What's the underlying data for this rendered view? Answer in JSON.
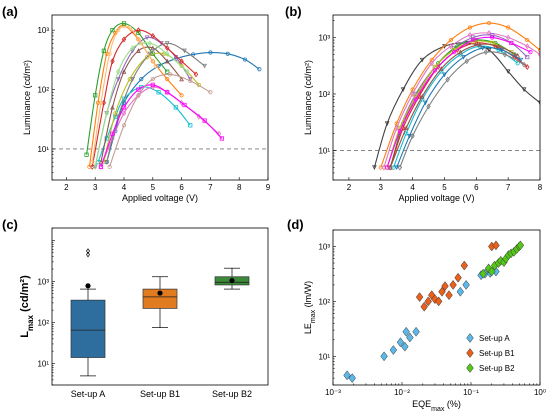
{
  "chart_data": [
    {
      "panel": "(a)",
      "type": "line",
      "xlabel": "Applied voltage (V)",
      "ylabel": "Luminance (cd/m²)",
      "xlim": [
        1.5,
        9.0
      ],
      "ylim": [
        3,
        1800
      ],
      "yscale": "log",
      "xticks": [
        2,
        3,
        4,
        5,
        6,
        7,
        8,
        9
      ],
      "yticks": [
        {
          "v": 10,
          "label": "10¹"
        },
        {
          "v": 100,
          "label": "10²"
        },
        {
          "v": 1000,
          "label": "10³"
        }
      ],
      "reference_line": 10,
      "series": [
        {
          "color": "#1f77b4",
          "marker": "o",
          "x": [
            3.4,
            3.7,
            4.0,
            4.6,
            5.2,
            5.8,
            6.4,
            7.0,
            7.6,
            8.2,
            8.7
          ],
          "y": [
            6,
            20,
            60,
            150,
            250,
            330,
            390,
            420,
            400,
            320,
            220
          ]
        },
        {
          "color": "#17becf",
          "marker": "s",
          "x": [
            3.1,
            3.4,
            3.7,
            4.0,
            4.6,
            5.2,
            5.8,
            6.3
          ],
          "y": [
            6,
            15,
            35,
            70,
            110,
            90,
            50,
            25
          ]
        },
        {
          "color": "#9467bd",
          "marker": "v",
          "x": [
            3.0,
            3.4,
            3.8,
            4.3,
            4.8,
            5.3,
            5.8,
            6.3
          ],
          "y": [
            5,
            40,
            150,
            450,
            750,
            600,
            350,
            150
          ]
        },
        {
          "color": "#e377c2",
          "marker": "d",
          "x": [
            3.2,
            3.6,
            4.0,
            4.5,
            5.0,
            5.5,
            6.0,
            6.6,
            7.3
          ],
          "y": [
            5,
            15,
            40,
            80,
            110,
            90,
            60,
            35,
            18
          ]
        },
        {
          "color": "#ff7f0e",
          "marker": "o",
          "x": [
            2.8,
            3.1,
            3.4,
            3.7,
            4.0,
            4.5,
            5.0,
            5.5,
            6.0
          ],
          "y": [
            5,
            60,
            400,
            900,
            1200,
            700,
            300,
            150,
            80
          ]
        },
        {
          "color": "#2ca02c",
          "marker": "s",
          "x": [
            2.7,
            3.0,
            3.3,
            3.6,
            4.0,
            4.5,
            5.0,
            5.5
          ],
          "y": [
            8,
            80,
            450,
            1000,
            1300,
            900,
            400,
            200
          ]
        },
        {
          "color": "#d62728",
          "marker": "d",
          "x": [
            2.9,
            3.3,
            3.6,
            4.0,
            4.5,
            5.0,
            5.5,
            6.0,
            6.5
          ],
          "y": [
            5,
            60,
            300,
            700,
            1000,
            800,
            500,
            300,
            180
          ]
        },
        {
          "color": "#8c564b",
          "marker": "^",
          "x": [
            3.2,
            3.6,
            4.0,
            4.5,
            5.0,
            5.5,
            6.0
          ],
          "y": [
            6,
            50,
            200,
            450,
            500,
            300,
            150
          ]
        },
        {
          "color": "#bcbd22",
          "marker": "o",
          "x": [
            3.3,
            3.7,
            4.2,
            4.8,
            5.4,
            6.0,
            6.6
          ],
          "y": [
            6,
            40,
            150,
            350,
            400,
            250,
            120
          ]
        },
        {
          "color": "#7f7f7f",
          "marker": "v",
          "x": [
            3.4,
            3.8,
            4.3,
            4.9,
            5.5,
            6.1,
            6.8
          ],
          "y": [
            6,
            35,
            150,
            400,
            600,
            450,
            250
          ]
        },
        {
          "color": "#ff00ff",
          "marker": "s",
          "x": [
            3.2,
            3.6,
            4.0,
            4.5,
            5.0,
            5.5,
            6.1,
            6.8,
            7.4
          ],
          "y": [
            5,
            18,
            50,
            100,
            120,
            90,
            55,
            30,
            15
          ]
        },
        {
          "color": "#ffbb78",
          "marker": "o",
          "x": [
            2.9,
            3.2,
            3.5,
            3.8,
            4.2,
            4.6,
            5.1
          ],
          "y": [
            6,
            60,
            400,
            1000,
            1100,
            600,
            250
          ]
        },
        {
          "color": "#98df8a",
          "marker": "d",
          "x": [
            3.0,
            3.4,
            3.8,
            4.3,
            4.9,
            5.5,
            6.2
          ],
          "y": [
            5,
            40,
            200,
            500,
            600,
            400,
            200
          ]
        },
        {
          "color": "#c49c94",
          "marker": "o",
          "x": [
            3.5,
            4.0,
            4.5,
            5.0,
            5.6,
            6.3,
            7.0
          ],
          "y": [
            5,
            25,
            80,
            150,
            180,
            140,
            90
          ]
        }
      ]
    },
    {
      "panel": "(b)",
      "type": "line",
      "xlabel": "Applied voltage (V)",
      "ylabel": "Luminance (cd/m²)",
      "xlim": [
        1.5,
        8.0
      ],
      "ylim": [
        3,
        2500
      ],
      "yscale": "log",
      "xticks": [
        2,
        3,
        4,
        5,
        6,
        7,
        8
      ],
      "yticks": [
        {
          "v": 10,
          "label": "10¹"
        },
        {
          "v": 100,
          "label": "10²"
        },
        {
          "v": 1000,
          "label": "10³"
        }
      ],
      "reference_line": 10,
      "series": [
        {
          "color": "#404040",
          "marker": "v",
          "x": [
            2.8,
            3.2,
            3.7,
            4.3,
            5.0,
            5.7,
            6.4,
            7.0,
            7.5,
            8.0
          ],
          "y": [
            5,
            30,
            120,
            400,
            700,
            800,
            600,
            250,
            120,
            70
          ]
        },
        {
          "color": "#ff7f0e",
          "marker": "o",
          "x": [
            3.0,
            3.5,
            4.0,
            4.6,
            5.2,
            5.8,
            6.4,
            7.0,
            7.6,
            8.0
          ],
          "y": [
            5,
            30,
            120,
            400,
            900,
            1500,
            1800,
            1500,
            900,
            600
          ]
        },
        {
          "color": "#e377c2",
          "marker": "d",
          "x": [
            3.1,
            3.5,
            4.0,
            4.6,
            5.2,
            5.8,
            6.4,
            7.0,
            7.6,
            8.0
          ],
          "y": [
            5,
            25,
            100,
            350,
            700,
            1100,
            1200,
            1000,
            700,
            500
          ]
        },
        {
          "color": "#9467bd",
          "marker": "s",
          "x": [
            3.2,
            3.6,
            4.1,
            4.7,
            5.3,
            5.9,
            6.5,
            7.1,
            7.6
          ],
          "y": [
            5,
            25,
            100,
            300,
            650,
            1000,
            1100,
            800,
            450
          ]
        },
        {
          "color": "#2ca02c",
          "marker": "o",
          "x": [
            3.3,
            3.7,
            4.2,
            4.8,
            5.4,
            6.0,
            6.6,
            7.2
          ],
          "y": [
            5,
            30,
            110,
            350,
            700,
            900,
            800,
            500
          ]
        },
        {
          "color": "#d62728",
          "marker": "d",
          "x": [
            3.3,
            3.7,
            4.2,
            4.8,
            5.4,
            6.0,
            6.6,
            7.2,
            7.6
          ],
          "y": [
            5,
            25,
            90,
            300,
            600,
            800,
            700,
            450,
            300
          ]
        },
        {
          "color": "#17becf",
          "marker": "o",
          "x": [
            3.4,
            3.8,
            4.3,
            4.9,
            5.5,
            6.1,
            6.7,
            7.3
          ],
          "y": [
            5,
            20,
            80,
            250,
            500,
            700,
            600,
            350
          ]
        },
        {
          "color": "#bcbd22",
          "marker": "s",
          "x": [
            3.2,
            3.6,
            4.1,
            4.7,
            5.3,
            5.9,
            6.5,
            7.1
          ],
          "y": [
            5,
            25,
            90,
            300,
            600,
            850,
            800,
            550
          ]
        },
        {
          "color": "#1f77b4",
          "marker": "v",
          "x": [
            3.5,
            3.9,
            4.4,
            5.0,
            5.6,
            6.2,
            6.8,
            7.4
          ],
          "y": [
            5,
            18,
            70,
            220,
            450,
            650,
            600,
            400
          ]
        },
        {
          "color": "#8c564b",
          "marker": "^",
          "x": [
            3.3,
            3.8,
            4.3,
            4.9,
            5.5,
            6.1,
            6.7,
            7.3
          ],
          "y": [
            5,
            25,
            90,
            280,
            550,
            750,
            700,
            480
          ]
        },
        {
          "color": "#ff00ff",
          "marker": "o",
          "x": [
            3.2,
            3.6,
            4.1,
            4.7,
            5.3,
            5.9,
            6.5,
            7.1,
            7.7
          ],
          "y": [
            5,
            22,
            80,
            260,
            550,
            900,
            1000,
            800,
            550
          ]
        },
        {
          "color": "#7f7f7f",
          "marker": "d",
          "x": [
            3.6,
            4.0,
            4.5,
            5.1,
            5.7,
            6.3,
            6.9,
            7.5
          ],
          "y": [
            5,
            18,
            60,
            180,
            380,
            550,
            500,
            330
          ]
        }
      ]
    },
    {
      "panel": "(c)",
      "type": "box",
      "ylabel": "L",
      "ylabel_sub": "max",
      "ylabel_unit": " (cd/m²)",
      "yscale": "log",
      "ylim": [
        3,
        20000
      ],
      "yticks": [
        {
          "v": 10,
          "label": "10¹"
        },
        {
          "v": 100,
          "label": "10²"
        },
        {
          "v": 1000,
          "label": "10³"
        }
      ],
      "categories": [
        "Set-up A",
        "Set-up B1",
        "Set-up B2"
      ],
      "boxes": [
        {
          "color": "#2e6e9e",
          "whisker_low": 5,
          "q1": 14,
          "median": 65,
          "q3": 350,
          "whisker_high": 650,
          "mean": 780,
          "outliers": [
            4500,
            5500
          ]
        },
        {
          "color": "#e07b1f",
          "whisker_low": 75,
          "q1": 220,
          "median": 420,
          "q3": 650,
          "whisker_high": 1300,
          "mean": 520,
          "outliers": []
        },
        {
          "color": "#3a8a3a",
          "whisker_low": 650,
          "q1": 820,
          "median": 950,
          "q3": 1300,
          "whisker_high": 2100,
          "mean": 1050,
          "outliers": []
        }
      ]
    },
    {
      "panel": "(d)",
      "type": "scatter",
      "xlabel": "EQE",
      "xlabel_sub": "max",
      "xlabel_unit": " (%)",
      "ylabel": "LE",
      "ylabel_sub": "max",
      "ylabel_unit": " (lm/W)",
      "xscale": "log",
      "yscale": "log",
      "xlim": [
        0.001,
        1
      ],
      "ylim": [
        3,
        2000
      ],
      "xticks": [
        {
          "v": 0.001,
          "label": "10⁻³"
        },
        {
          "v": 0.01,
          "label": "10⁻²"
        },
        {
          "v": 0.1,
          "label": "10⁻¹"
        },
        {
          "v": 1,
          "label": "10⁰"
        }
      ],
      "yticks": [
        {
          "v": 10,
          "label": "10¹"
        },
        {
          "v": 100,
          "label": "10²"
        },
        {
          "v": 1000,
          "label": "10³"
        }
      ],
      "legend_position": "bottom-right",
      "series": [
        {
          "name": "Set-up A",
          "color": "#5bb8e8",
          "x": [
            0.0016,
            0.0019,
            0.0055,
            0.0075,
            0.0095,
            0.011,
            0.0115,
            0.013,
            0.016,
            0.07,
            0.085,
            0.14,
            0.16,
            0.19,
            0.23
          ],
          "y": [
            4.5,
            4,
            10,
            13,
            18,
            15,
            28,
            22,
            28,
            150,
            200,
            300,
            320,
            330,
            350
          ]
        },
        {
          "name": "Set-up B1",
          "color": "#e8601c",
          "x": [
            0.018,
            0.021,
            0.024,
            0.027,
            0.03,
            0.034,
            0.038,
            0.042,
            0.048,
            0.055,
            0.065,
            0.08,
            0.2,
            0.23
          ],
          "y": [
            120,
            80,
            100,
            130,
            110,
            100,
            150,
            190,
            130,
            200,
            270,
            450,
            1000,
            1050
          ]
        },
        {
          "name": "Set-up B2",
          "color": "#55c61a",
          "x": [
            0.15,
            0.18,
            0.2,
            0.22,
            0.25,
            0.27,
            0.3,
            0.32,
            0.35,
            0.38,
            0.42,
            0.46,
            0.5,
            0.52
          ],
          "y": [
            320,
            400,
            350,
            450,
            500,
            550,
            520,
            600,
            700,
            750,
            800,
            900,
            1000,
            1050
          ]
        }
      ]
    }
  ]
}
